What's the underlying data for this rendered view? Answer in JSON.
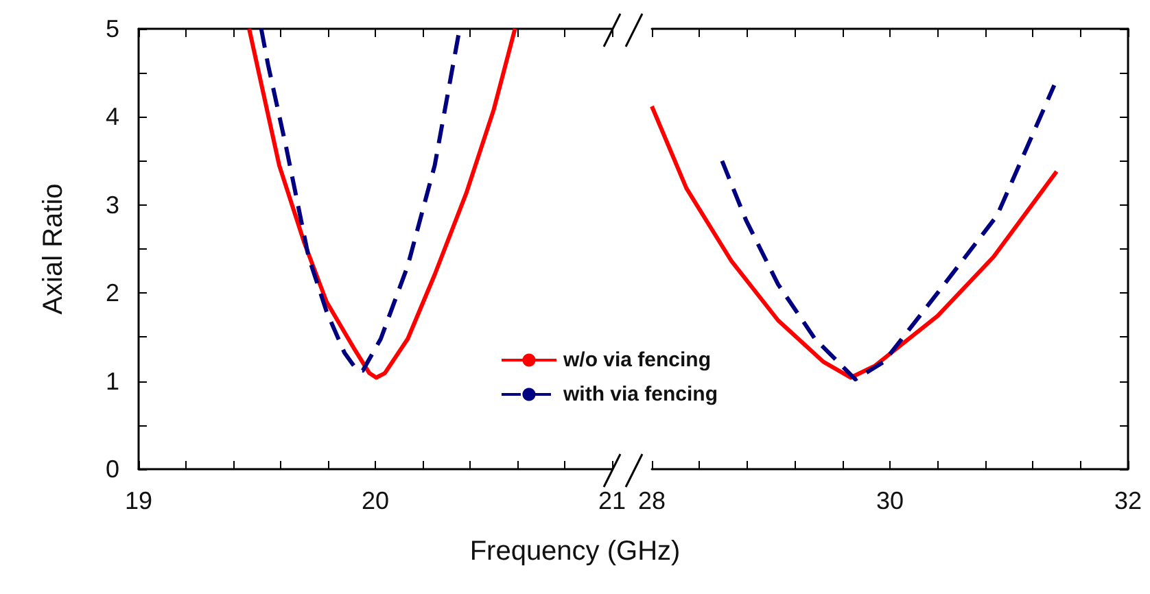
{
  "chart_data": [
    {
      "type": "line",
      "xlabel": "Frequency (GHz)",
      "ylabel": "Axial Ratio",
      "xlim": [
        19,
        21
      ],
      "ylim": [
        0,
        5
      ],
      "xticks": [
        19,
        {
          "value": 19.2,
          "label": null
        },
        {
          "value": 19.4,
          "label": null
        },
        {
          "value": 19.6,
          "label": null
        },
        {
          "value": 19.8,
          "label": null
        },
        20,
        {
          "value": 20.2,
          "label": null
        },
        {
          "value": 20.4,
          "label": null
        },
        {
          "value": 20.6,
          "label": null
        },
        {
          "value": 20.8,
          "label": null
        },
        21
      ],
      "yticks": [
        0,
        {
          "value": 0.5,
          "label": null
        },
        1,
        {
          "value": 1.5,
          "label": null
        },
        2,
        {
          "value": 2.5,
          "label": null
        },
        3,
        {
          "value": 3.5,
          "label": null
        },
        4,
        {
          "value": 4.5,
          "label": null
        },
        5
      ],
      "legend": "bottom right",
      "marker": "none",
      "grid": false,
      "series": [
        {
          "name": "w/o via fencing",
          "color": "#ff0000",
          "line_style": "solid",
          "x": [
            19.467,
            19.594,
            19.7,
            19.794,
            19.908,
            19.975,
            20.004,
            20.04,
            20.137,
            20.251,
            20.385,
            20.5,
            20.59
          ],
          "values": [
            5,
            3.45,
            2.57,
            1.9,
            1.38,
            1.09,
            1.04,
            1.09,
            1.48,
            2.21,
            3.14,
            4.08,
            5
          ]
        },
        {
          "name": "with via fencing",
          "color": "#000080",
          "line_style": "dashed",
          "x": [
            19.518,
            19.547,
            19.623,
            19.718,
            19.794,
            19.87,
            19.924,
            19.947,
            20.023,
            20.137,
            20.251,
            20.356
          ],
          "values": [
            5,
            4.59,
            3.66,
            2.41,
            1.79,
            1.32,
            1.12,
            1.12,
            1.48,
            2.31,
            3.45,
            5
          ]
        }
      ]
    },
    {
      "type": "line",
      "xlim": [
        28,
        32
      ],
      "ylim": [
        0,
        5
      ],
      "tick_labels": "x",
      "xticks": [
        28,
        {
          "value": 28.4,
          "label": null
        },
        {
          "value": 28.8,
          "label": null
        },
        {
          "value": 29.2,
          "label": null
        },
        {
          "value": 29.6,
          "label": null
        },
        30,
        {
          "value": 30.4,
          "label": null
        },
        {
          "value": 30.8,
          "label": null
        },
        {
          "value": 31.2,
          "label": null
        },
        {
          "value": 31.6,
          "label": null
        },
        32
      ],
      "yticks": [
        0,
        {
          "value": 0.5,
          "label": null
        },
        1,
        {
          "value": 1.5,
          "label": null
        },
        2,
        {
          "value": 2.5,
          "label": null
        },
        3,
        {
          "value": 3.5,
          "label": null
        },
        4,
        {
          "value": 4.5,
          "label": null
        },
        5
      ],
      "marker": "none",
      "grid": false,
      "series": [
        {
          "color": "#ff0000",
          "line_style": "solid",
          "x": [
            28,
            28.29,
            28.67,
            29.06,
            29.44,
            29.67,
            29.87,
            30.4,
            30.87,
            31.4
          ],
          "values": [
            4.12,
            3.19,
            2.36,
            1.69,
            1.22,
            1.04,
            1.17,
            1.74,
            2.41,
            3.38
          ]
        },
        {
          "color": "#000080",
          "line_style": "dashed",
          "x": [
            28.59,
            28.79,
            29.06,
            29.37,
            29.71,
            29.95,
            30.4,
            30.9,
            31.38
          ],
          "values": [
            3.5,
            2.83,
            2.1,
            1.48,
            1.02,
            1.22,
            2.0,
            2.88,
            4.36
          ]
        }
      ]
    }
  ]
}
